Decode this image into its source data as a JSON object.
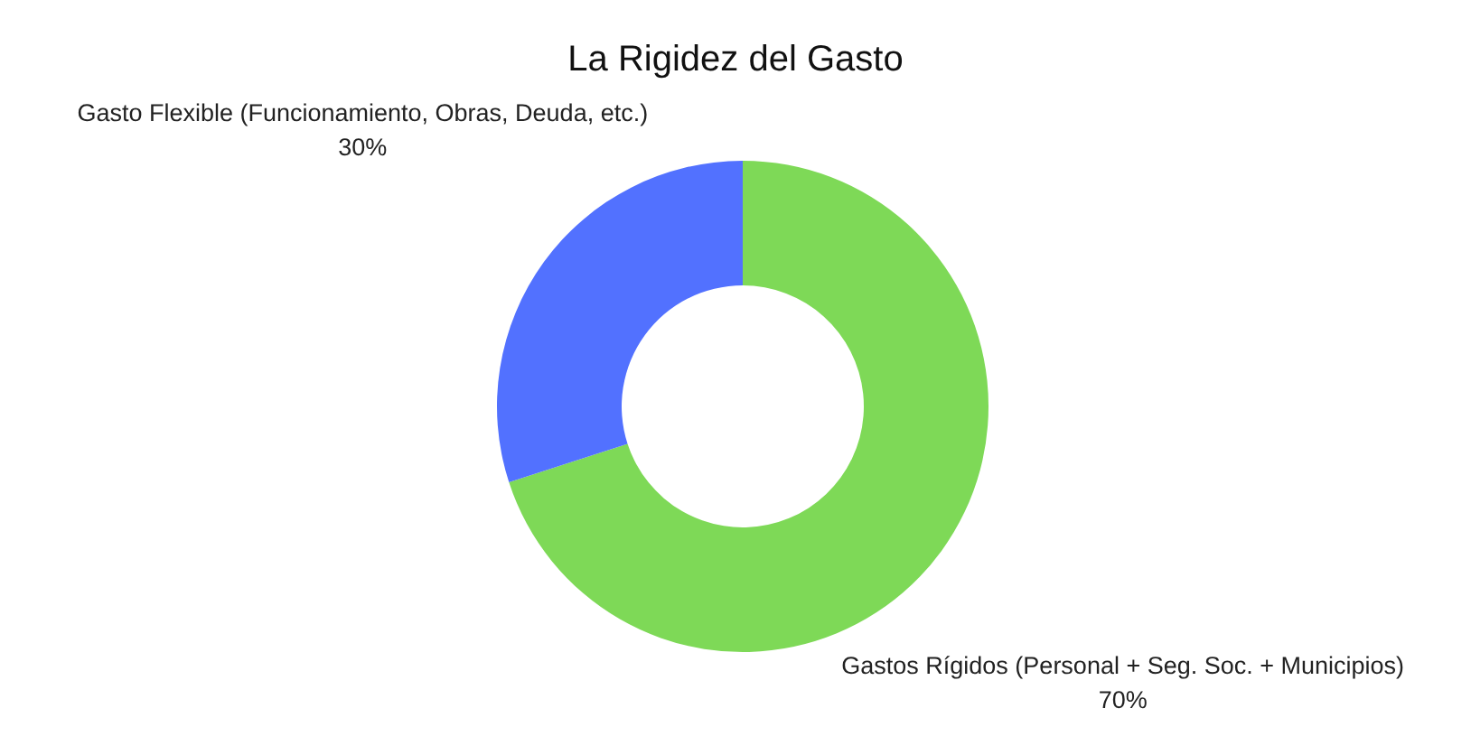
{
  "chart_data": {
    "type": "donut",
    "title": "La Rigidez del Gasto",
    "categories": [
      "Gastos Rígidos (Personal + Seg. Soc. + Municipios)",
      "Gasto Flexible (Funcionamiento, Obras, Deuda, etc.)"
    ],
    "values": [
      70,
      30
    ],
    "colors": [
      "#7ed957",
      "#5271ff"
    ],
    "value_labels": [
      "70%",
      "30%"
    ],
    "legend": false
  }
}
